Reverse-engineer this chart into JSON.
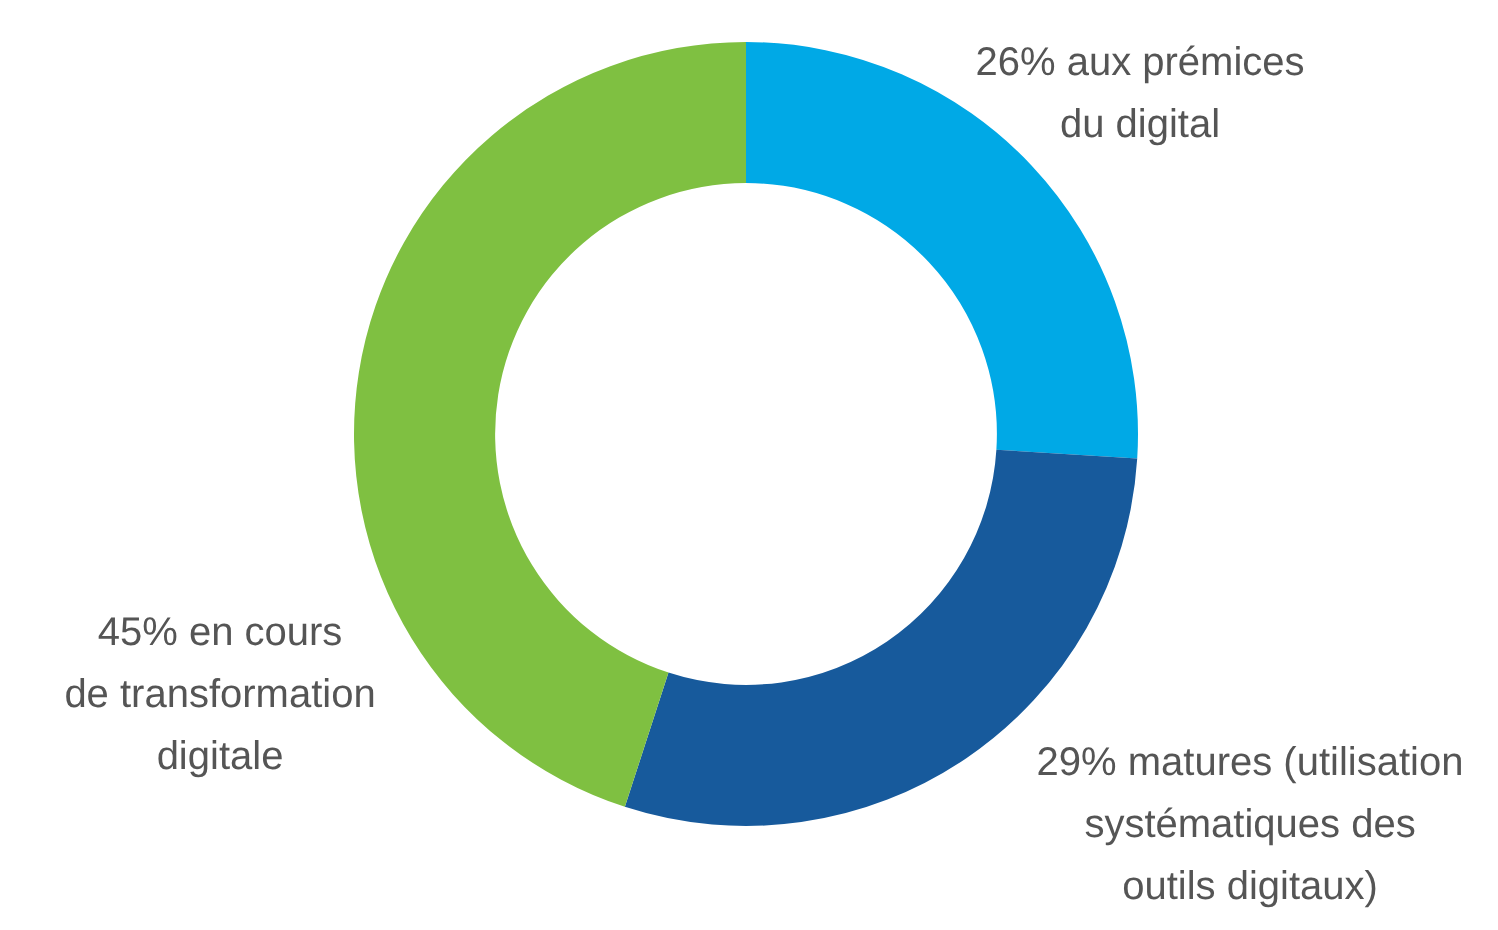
{
  "chart_data": {
    "type": "donut",
    "categories": [
      "aux prémices\ndu digital",
      "matures (utilisation\nsystématiques des\noutils digitaux)",
      "en cours\nde transformation\ndigitale"
    ],
    "values": [
      26,
      29,
      45
    ],
    "value_labels": [
      "26%",
      "29%",
      "45%"
    ],
    "colors": [
      "#00a9e6",
      "#175a9c",
      "#7fc041"
    ]
  }
}
